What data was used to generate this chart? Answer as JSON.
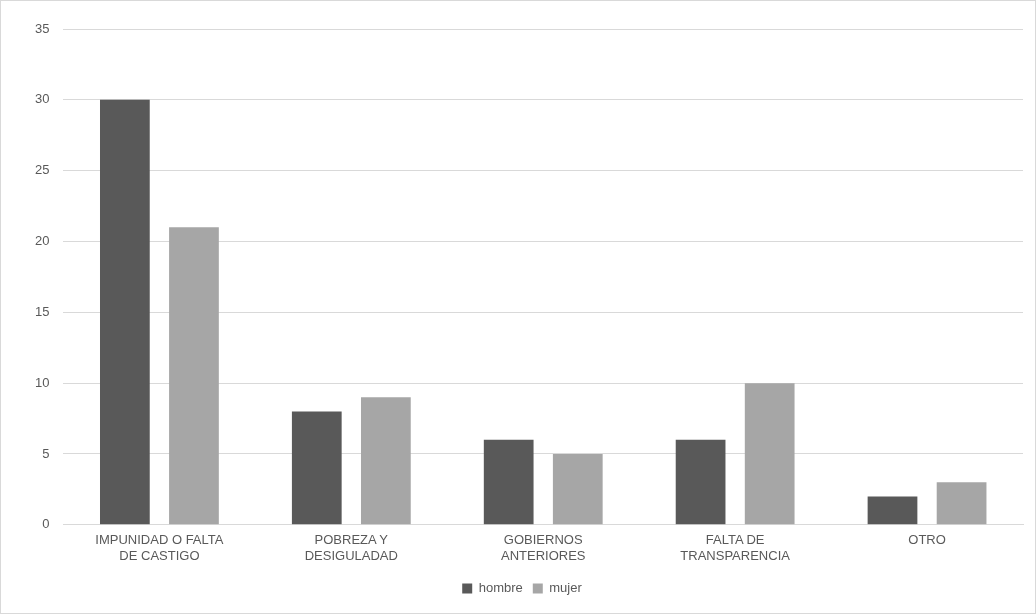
{
  "chart_data": {
    "type": "bar",
    "categories": [
      "IMPUNIDAD O FALTA DE CASTIGO",
      "POBREZA Y DESIGULADAD",
      "GOBIERNOS ANTERIORES",
      "FALTA DE TRANSPARENCIA",
      "OTRO"
    ],
    "series": [
      {
        "name": "hombre",
        "color": "#595959",
        "values": [
          30,
          8,
          6,
          6,
          2
        ]
      },
      {
        "name": "mujer",
        "color": "#a6a6a6",
        "values": [
          21,
          9,
          5,
          10,
          3
        ]
      }
    ],
    "ylim": [
      0,
      35
    ],
    "yticks": [
      0,
      5,
      10,
      15,
      20,
      25,
      30,
      35
    ],
    "grid": "y",
    "legend": "bottom"
  }
}
